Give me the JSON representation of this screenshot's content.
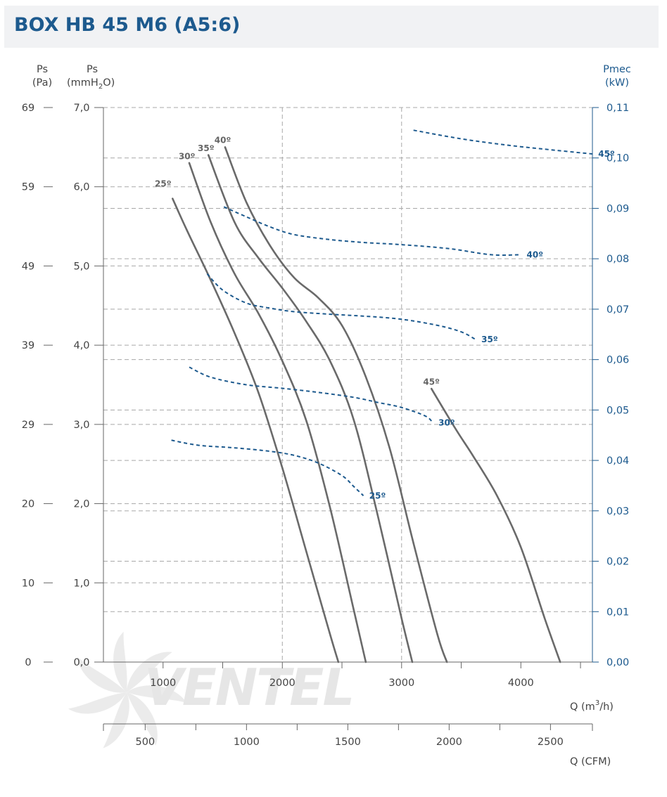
{
  "header": {
    "title": "BOX HB 45 M6 (A5:6)"
  },
  "axes": {
    "pa_label": [
      "Ps",
      "(Pa)"
    ],
    "mm_label": [
      "Ps",
      "(mmH",
      "2",
      "O)"
    ],
    "kw_label": [
      "Pmec",
      "(kW)"
    ],
    "q_label": [
      "Q (m",
      "3",
      "/h)"
    ],
    "cfm_label": "Q (CFM)",
    "pa_ticks": [
      "69",
      "59",
      "49",
      "39",
      "29",
      "20",
      "10",
      "0"
    ],
    "mm_ticks": [
      "7,0",
      "6,0",
      "5,0",
      "4,0",
      "3,0",
      "2,0",
      "1,0",
      "0,0"
    ],
    "kw_ticks": [
      "0,11",
      "0,10",
      "0,09",
      "0,08",
      "0,07",
      "0,06",
      "0,05",
      "0,04",
      "0,03",
      "0,02",
      "0,01",
      "0,00"
    ],
    "q_ticks": [
      "1000",
      "2000",
      "3000",
      "4000"
    ],
    "cfm_ticks": [
      "500",
      "1000",
      "1500",
      "2000",
      "2500"
    ]
  },
  "watermark": {
    "brand": "VENTEL"
  },
  "chart_data": {
    "type": "line",
    "x_axis": {
      "label": "Q (m3/h)",
      "range": [
        500,
        4600
      ]
    },
    "x_axis_secondary": {
      "label": "Q (CFM)",
      "range": [
        294,
        2707
      ]
    },
    "y_axis_left": {
      "label": "Ps (mmH2O)",
      "range": [
        0,
        7.0
      ],
      "secondary_label": "Ps (Pa)"
    },
    "y_axis_right": {
      "label": "Pmec (kW)",
      "range": [
        0,
        0.11
      ]
    },
    "grid": true,
    "pressure_series": [
      {
        "name": "25º",
        "label_at": [
          1000,
          6.0
        ],
        "points": [
          [
            1080,
            5.85
          ],
          [
            1200,
            5.45
          ],
          [
            1400,
            4.82
          ],
          [
            1600,
            4.15
          ],
          [
            1800,
            3.4
          ],
          [
            2000,
            2.45
          ],
          [
            2200,
            1.4
          ],
          [
            2400,
            0.35
          ],
          [
            2470,
            0.0
          ]
        ]
      },
      {
        "name": "30º",
        "label_at": [
          1200,
          6.35
        ],
        "points": [
          [
            1220,
            6.3
          ],
          [
            1400,
            5.55
          ],
          [
            1600,
            4.9
          ],
          [
            1800,
            4.4
          ],
          [
            2000,
            3.8
          ],
          [
            2200,
            3.05
          ],
          [
            2400,
            1.95
          ],
          [
            2600,
            0.65
          ],
          [
            2700,
            0.0
          ]
        ]
      },
      {
        "name": "35º",
        "label_at": [
          1360,
          6.45
        ],
        "points": [
          [
            1380,
            6.4
          ],
          [
            1600,
            5.55
          ],
          [
            1800,
            5.1
          ],
          [
            2000,
            4.72
          ],
          [
            2200,
            4.3
          ],
          [
            2400,
            3.8
          ],
          [
            2600,
            3.05
          ],
          [
            2800,
            1.85
          ],
          [
            3000,
            0.55
          ],
          [
            3090,
            0.0
          ]
        ]
      },
      {
        "name": "40º",
        "label_at": [
          1500,
          6.55
        ],
        "points": [
          [
            1520,
            6.5
          ],
          [
            1700,
            5.8
          ],
          [
            1900,
            5.25
          ],
          [
            2100,
            4.85
          ],
          [
            2300,
            4.6
          ],
          [
            2500,
            4.25
          ],
          [
            2700,
            3.6
          ],
          [
            2900,
            2.7
          ],
          [
            3100,
            1.5
          ],
          [
            3300,
            0.35
          ],
          [
            3380,
            0.0
          ]
        ]
      },
      {
        "name": "45º",
        "label_at": [
          3250,
          3.5
        ],
        "points": [
          [
            3250,
            3.45
          ],
          [
            3450,
            2.95
          ],
          [
            3600,
            2.6
          ],
          [
            3800,
            2.1
          ],
          [
            4000,
            1.45
          ],
          [
            4200,
            0.55
          ],
          [
            4330,
            0.0
          ]
        ]
      }
    ],
    "power_series": [
      {
        "name": "25º",
        "label_at": [
          3450,
          0.033
        ],
        "points": [
          [
            1070,
            0.044
          ],
          [
            1300,
            0.043
          ],
          [
            1600,
            0.0425
          ],
          [
            1900,
            0.0418
          ],
          [
            2100,
            0.041
          ],
          [
            2300,
            0.0395
          ],
          [
            2500,
            0.037
          ],
          [
            2600,
            0.0348
          ],
          [
            2680,
            0.033
          ]
        ]
      },
      {
        "name": "30º",
        "label_at": [
          3800,
          0.0475
        ],
        "points": [
          [
            1220,
            0.0585
          ],
          [
            1400,
            0.0565
          ],
          [
            1700,
            0.055
          ],
          [
            2000,
            0.0543
          ],
          [
            2300,
            0.0535
          ],
          [
            2600,
            0.0525
          ],
          [
            2800,
            0.0515
          ],
          [
            3000,
            0.0505
          ],
          [
            3200,
            0.0488
          ],
          [
            3260,
            0.0475
          ]
        ]
      },
      {
        "name": "35º",
        "label_at": [
          4280,
          0.0635
        ],
        "points": [
          [
            1370,
            0.077
          ],
          [
            1500,
            0.0738
          ],
          [
            1700,
            0.0712
          ],
          [
            1900,
            0.0702
          ],
          [
            2100,
            0.0695
          ],
          [
            2400,
            0.069
          ],
          [
            2700,
            0.0686
          ],
          [
            3000,
            0.068
          ],
          [
            3300,
            0.0668
          ],
          [
            3500,
            0.0655
          ],
          [
            3620,
            0.064
          ]
        ]
      },
      {
        "name": "40º",
        "label_at": [
          4900,
          0.0808
        ],
        "points": [
          [
            1510,
            0.0903
          ],
          [
            1700,
            0.0883
          ],
          [
            1900,
            0.0863
          ],
          [
            2100,
            0.0848
          ],
          [
            2400,
            0.0838
          ],
          [
            2700,
            0.0832
          ],
          [
            3000,
            0.0828
          ],
          [
            3400,
            0.082
          ],
          [
            3750,
            0.0808
          ],
          [
            4000,
            0.0808
          ]
        ]
      },
      {
        "name": "45º",
        "label_at": [
          5550,
          0.101
        ],
        "points": [
          [
            3100,
            0.1055
          ],
          [
            3500,
            0.1038
          ],
          [
            3900,
            0.1025
          ],
          [
            4300,
            0.1015
          ],
          [
            4600,
            0.1008
          ]
        ]
      }
    ]
  }
}
